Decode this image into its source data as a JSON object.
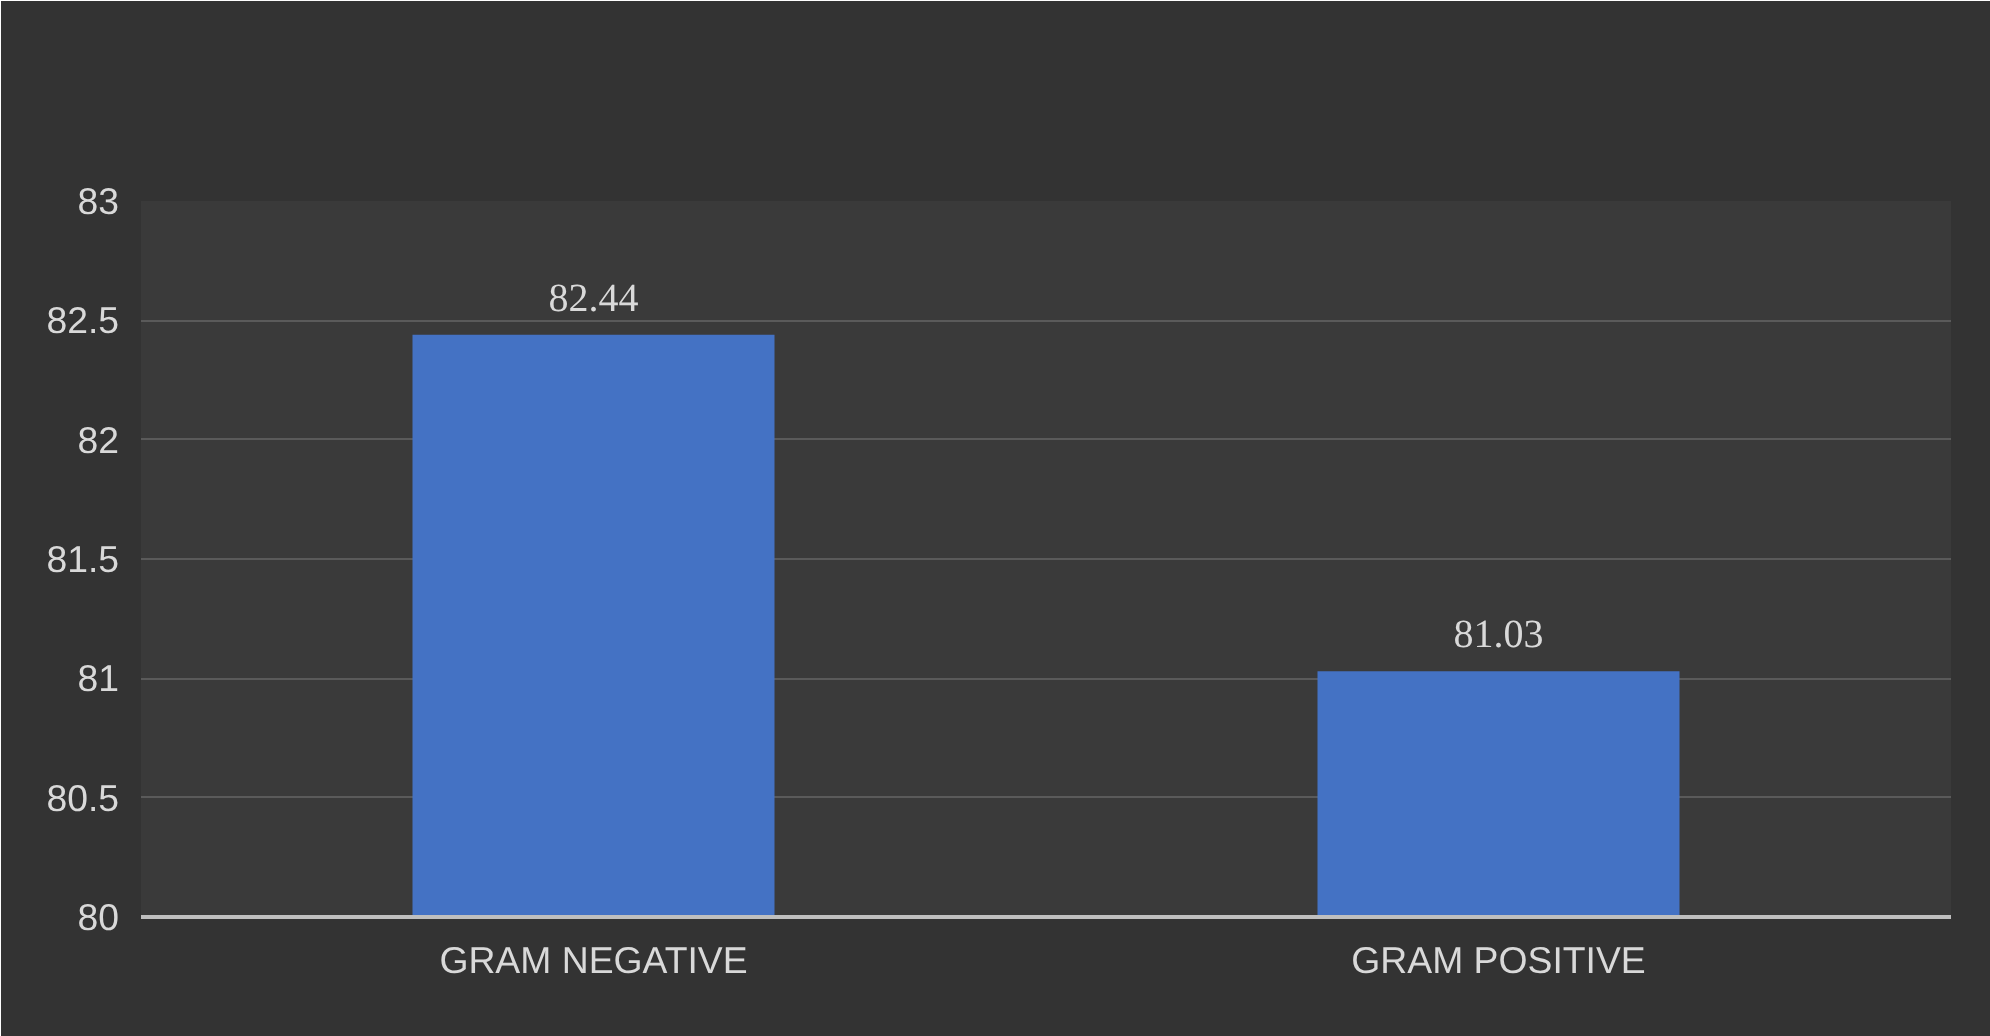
{
  "chart_data": {
    "type": "bar",
    "categories": [
      "GRAM NEGATIVE",
      "GRAM POSITIVE"
    ],
    "values": [
      82.44,
      81.03
    ],
    "color": "#4472c4",
    "ylim": [
      80,
      83
    ],
    "yticks": [
      80,
      80.5,
      81,
      81.5,
      82,
      82.5,
      83
    ],
    "grid": "y",
    "data_labels": true
  }
}
